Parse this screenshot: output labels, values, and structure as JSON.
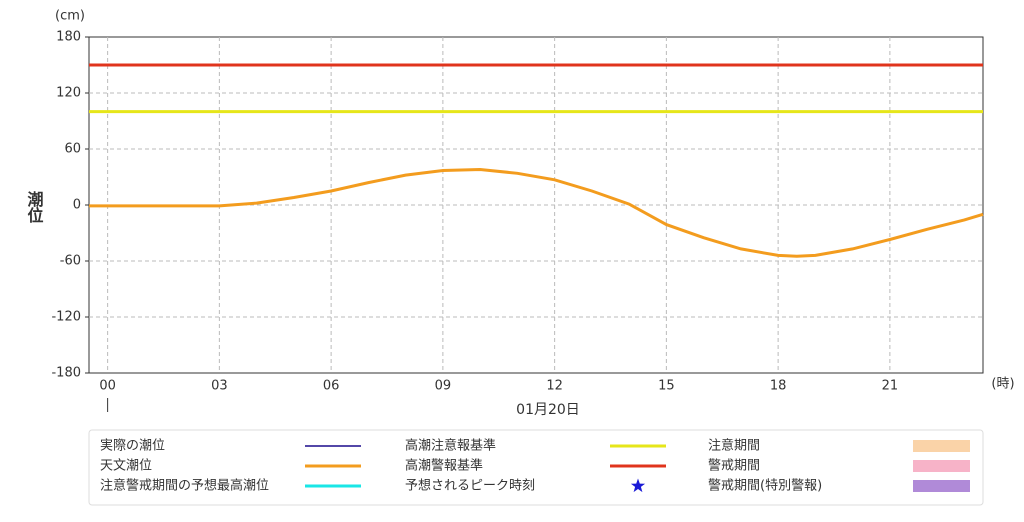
{
  "chart_data": {
    "type": "line",
    "y_label": "潮位",
    "y_unit": "(cm)",
    "x_unit": "(時)",
    "date_label": "01月20日",
    "x": [
      -0.5,
      0,
      1,
      2,
      3,
      4,
      5,
      6,
      7,
      8,
      9,
      10,
      11,
      12,
      13,
      14,
      15,
      16,
      17,
      18,
      18.5,
      19,
      20,
      21,
      22,
      23,
      23.5
    ],
    "xlim": [
      -0.5,
      23.5
    ],
    "xticks": [
      {
        "value": 0,
        "label": "00"
      },
      {
        "value": 3,
        "label": "03"
      },
      {
        "value": 6,
        "label": "06"
      },
      {
        "value": 9,
        "label": "09"
      },
      12,
      15,
      18,
      21
    ],
    "ylim": [
      -180,
      180
    ],
    "yticks": [
      -180,
      -120,
      -60,
      0,
      60,
      120,
      180
    ],
    "grid": true,
    "series": [
      {
        "name": "実際の潮位",
        "color": "#1a0a8c",
        "kind": "line"
      },
      {
        "name": "天文潮位",
        "color": "#f39c1e",
        "kind": "line",
        "values": [
          -1,
          -1,
          -1,
          -1,
          -1,
          2,
          8,
          15,
          24,
          32,
          37,
          38,
          34,
          27,
          15,
          1,
          -21,
          -35,
          -47,
          -54,
          -55,
          -54,
          -47,
          -37,
          -26,
          -16,
          -10
        ]
      },
      {
        "name": "注意警戒期間の予想最高潮位",
        "color": "#19e6e6",
        "kind": "line"
      },
      {
        "name": "高潮注意報基準",
        "color": "#e6e619",
        "kind": "line",
        "value": 100
      },
      {
        "name": "高潮警報基準",
        "color": "#e0341c",
        "kind": "line",
        "value": 150
      },
      {
        "name": "予想されるピーク時刻",
        "color": "#1a1ad6",
        "kind": "star"
      },
      {
        "name": "注意期間",
        "color": "#fad3a8",
        "kind": "band"
      },
      {
        "name": "警戒期間",
        "color": "#f7b3c8",
        "kind": "band"
      },
      {
        "name": "警戒期間(特別警報)",
        "color": "#b08ad8",
        "kind": "band"
      }
    ]
  }
}
